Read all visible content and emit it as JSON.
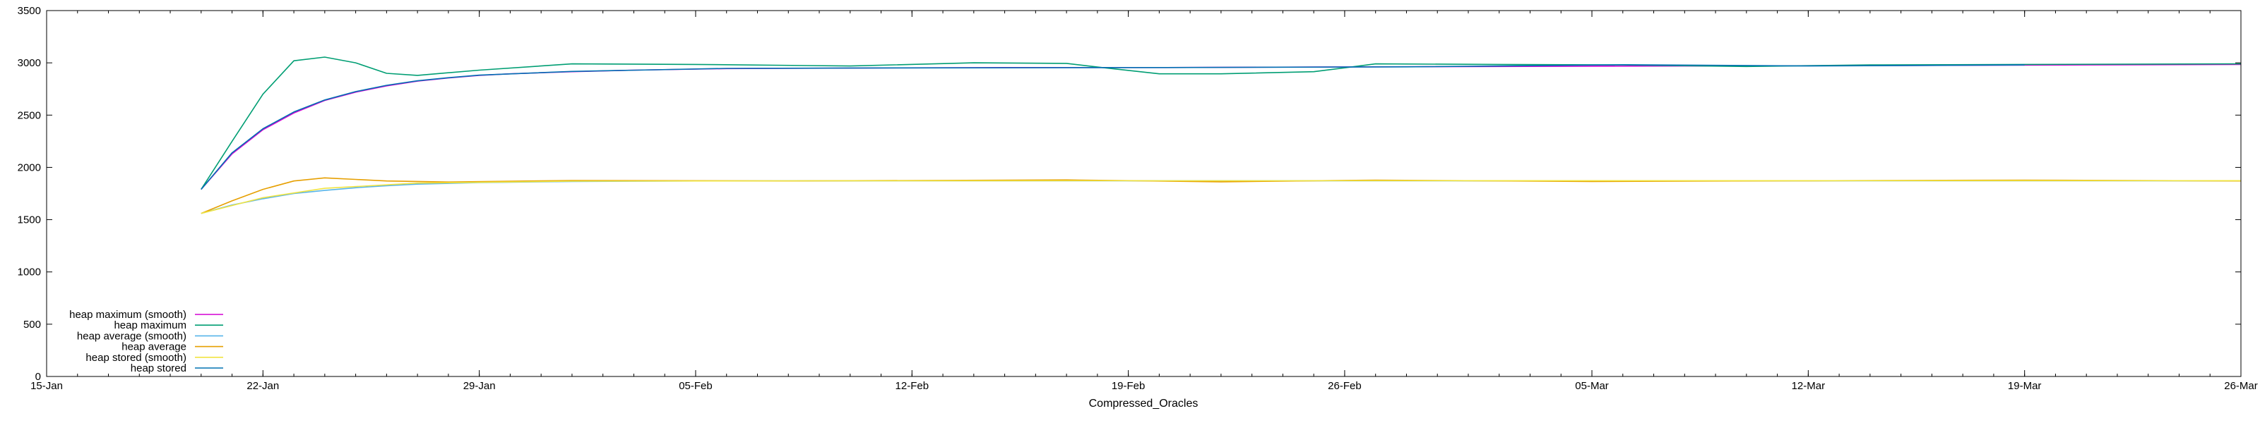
{
  "chart_data": {
    "type": "line",
    "xlabel": "Compressed_Oracles",
    "ylabel": "",
    "x_axis": {
      "type": "date",
      "range": [
        "2024-01-15",
        "2024-03-26"
      ],
      "ticks": [
        {
          "date": "2024-01-15",
          "label": "15-Jan"
        },
        {
          "date": "2024-01-22",
          "label": "22-Jan"
        },
        {
          "date": "2024-01-29",
          "label": "29-Jan"
        },
        {
          "date": "2024-02-05",
          "label": "05-Feb"
        },
        {
          "date": "2024-02-12",
          "label": "12-Feb"
        },
        {
          "date": "2024-02-19",
          "label": "19-Feb"
        },
        {
          "date": "2024-02-26",
          "label": "26-Feb"
        },
        {
          "date": "2024-03-05",
          "label": "05-Mar"
        },
        {
          "date": "2024-03-12",
          "label": "12-Mar"
        },
        {
          "date": "2024-03-19",
          "label": "19-Mar"
        },
        {
          "date": "2024-03-26",
          "label": "26-Mar"
        }
      ]
    },
    "ylim": [
      0,
      3500
    ],
    "yticks": [
      "0",
      "500",
      "1000",
      "1500",
      "2000",
      "2500",
      "3000",
      "3500"
    ],
    "grid": false,
    "legend_position": "bottom-left",
    "series": [
      {
        "name": "heap maximum (smooth)",
        "color": "#d400d4",
        "points": [
          [
            "2024-01-20",
            1790
          ],
          [
            "2024-01-21",
            2130
          ],
          [
            "2024-01-22",
            2360
          ],
          [
            "2024-01-23",
            2520
          ],
          [
            "2024-01-24",
            2640
          ],
          [
            "2024-01-25",
            2720
          ],
          [
            "2024-01-26",
            2780
          ],
          [
            "2024-01-27",
            2825
          ],
          [
            "2024-01-28",
            2855
          ],
          [
            "2024-01-29",
            2880
          ],
          [
            "2024-01-30",
            2895
          ],
          [
            "2024-02-01",
            2915
          ],
          [
            "2024-02-03",
            2930
          ],
          [
            "2024-02-06",
            2945
          ],
          [
            "2024-02-10",
            2950
          ],
          [
            "2024-02-15",
            2955
          ],
          [
            "2024-02-20",
            2955
          ],
          [
            "2024-02-25",
            2960
          ],
          [
            "2024-03-02",
            2965
          ],
          [
            "2024-03-08",
            2970
          ],
          [
            "2024-03-15",
            2975
          ],
          [
            "2024-03-21",
            2980
          ],
          [
            "2024-03-26",
            2985
          ]
        ]
      },
      {
        "name": "heap maximum",
        "color": "#009e73",
        "points": [
          [
            "2024-01-20",
            1790
          ],
          [
            "2024-01-21",
            2250
          ],
          [
            "2024-01-22",
            2700
          ],
          [
            "2024-01-23",
            3020
          ],
          [
            "2024-01-24",
            3055
          ],
          [
            "2024-01-25",
            3000
          ],
          [
            "2024-01-26",
            2900
          ],
          [
            "2024-01-27",
            2880
          ],
          [
            "2024-01-29",
            2930
          ],
          [
            "2024-02-01",
            2990
          ],
          [
            "2024-02-05",
            2985
          ],
          [
            "2024-02-10",
            2970
          ],
          [
            "2024-02-14",
            3000
          ],
          [
            "2024-02-17",
            2995
          ],
          [
            "2024-02-18",
            2960
          ],
          [
            "2024-02-20",
            2895
          ],
          [
            "2024-02-22",
            2895
          ],
          [
            "2024-02-25",
            2915
          ],
          [
            "2024-02-27",
            2990
          ],
          [
            "2024-03-02",
            2985
          ],
          [
            "2024-03-06",
            2980
          ],
          [
            "2024-03-10",
            2965
          ],
          [
            "2024-03-14",
            2980
          ],
          [
            "2024-03-19",
            2985
          ],
          [
            "2024-03-26",
            2990
          ]
        ]
      },
      {
        "name": "heap average (smooth)",
        "color": "#56b4e9",
        "points": [
          [
            "2024-01-20",
            1560
          ],
          [
            "2024-01-21",
            1640
          ],
          [
            "2024-01-22",
            1700
          ],
          [
            "2024-01-23",
            1750
          ],
          [
            "2024-01-24",
            1780
          ],
          [
            "2024-01-25",
            1805
          ],
          [
            "2024-01-26",
            1825
          ],
          [
            "2024-01-27",
            1840
          ],
          [
            "2024-01-29",
            1855
          ],
          [
            "2024-02-01",
            1865
          ],
          [
            "2024-02-05",
            1870
          ],
          [
            "2024-02-15",
            1872
          ],
          [
            "2024-02-25",
            1872
          ],
          [
            "2024-03-10",
            1872
          ],
          [
            "2024-03-26",
            1872
          ]
        ]
      },
      {
        "name": "heap average",
        "color": "#e69f00",
        "points": [
          [
            "2024-01-20",
            1560
          ],
          [
            "2024-01-21",
            1680
          ],
          [
            "2024-01-22",
            1790
          ],
          [
            "2024-01-23",
            1870
          ],
          [
            "2024-01-24",
            1900
          ],
          [
            "2024-01-25",
            1885
          ],
          [
            "2024-01-26",
            1870
          ],
          [
            "2024-01-28",
            1860
          ],
          [
            "2024-02-01",
            1875
          ],
          [
            "2024-02-08",
            1870
          ],
          [
            "2024-02-17",
            1880
          ],
          [
            "2024-02-22",
            1862
          ],
          [
            "2024-02-27",
            1878
          ],
          [
            "2024-03-05",
            1865
          ],
          [
            "2024-03-12",
            1872
          ],
          [
            "2024-03-19",
            1878
          ],
          [
            "2024-03-26",
            1870
          ]
        ]
      },
      {
        "name": "heap stored (smooth)",
        "color": "#f0e442",
        "points": [
          [
            "2024-01-20",
            1560
          ],
          [
            "2024-01-22",
            1710
          ],
          [
            "2024-01-24",
            1800
          ],
          [
            "2024-01-27",
            1850
          ],
          [
            "2024-02-01",
            1868
          ],
          [
            "2024-02-10",
            1872
          ],
          [
            "2024-03-26",
            1873
          ]
        ]
      },
      {
        "name": "heap stored",
        "color": "#0072b2",
        "points": [
          [
            "2024-01-20",
            1790
          ],
          [
            "2024-01-21",
            2140
          ],
          [
            "2024-01-22",
            2370
          ],
          [
            "2024-01-23",
            2530
          ],
          [
            "2024-01-24",
            2645
          ],
          [
            "2024-01-25",
            2725
          ],
          [
            "2024-01-26",
            2785
          ],
          [
            "2024-01-27",
            2828
          ],
          [
            "2024-01-28",
            2858
          ],
          [
            "2024-01-29",
            2882
          ],
          [
            "2024-02-01",
            2918
          ],
          [
            "2024-02-06",
            2947
          ],
          [
            "2024-02-12",
            2952
          ],
          [
            "2024-02-20",
            2955
          ],
          [
            "2024-02-28",
            2962
          ],
          [
            "2024-03-06",
            2982
          ],
          [
            "2024-03-12",
            2970
          ],
          [
            "2024-03-19",
            2980
          ]
        ]
      }
    ]
  }
}
